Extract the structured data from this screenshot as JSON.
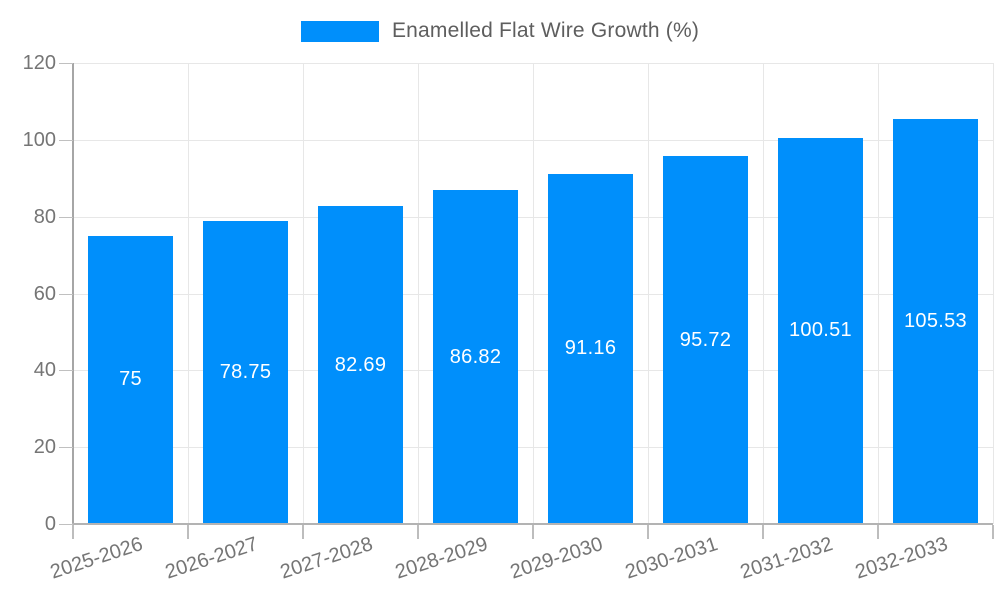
{
  "chart_data": {
    "type": "bar",
    "title": "",
    "categories": [
      "2025-2026",
      "2026-2027",
      "2027-2028",
      "2028-2029",
      "2029-2030",
      "2030-2031",
      "2031-2032",
      "2032-2033"
    ],
    "series": [
      {
        "name": "Enamelled Flat Wire Growth (%)",
        "values": [
          75,
          78.75,
          82.69,
          86.82,
          91.16,
          95.72,
          100.51,
          105.53
        ]
      }
    ],
    "value_labels": [
      "75",
      "78.75",
      "82.69",
      "86.82",
      "91.16",
      "95.72",
      "100.51",
      "105.53"
    ],
    "ylim": [
      0,
      120
    ],
    "yticks": [
      0,
      20,
      40,
      60,
      80,
      100,
      120
    ],
    "ytick_labels": [
      "0",
      "20",
      "40",
      "60",
      "80",
      "100",
      "120"
    ],
    "grid": true,
    "legend_position": "top",
    "xlabel": "",
    "ylabel": ""
  },
  "legend": {
    "label": "Enamelled Flat Wire Growth (%)"
  },
  "colors": {
    "bar": "#008FFB",
    "bar_value_label": "#ffffff",
    "gridline": "#e7e7e7",
    "axis_line": "#a6a6a6",
    "tick": "#bdbdbd",
    "axis_text": "#757575",
    "legend_text": "#5e5e5e",
    "background": "#ffffff"
  }
}
